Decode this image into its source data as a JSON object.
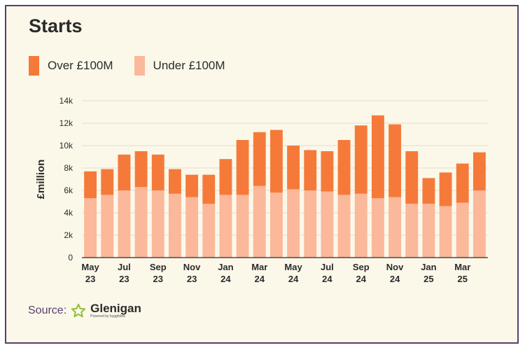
{
  "title": "Starts",
  "source": {
    "label": "Source:",
    "brand": "Glenigan",
    "brand_tagline": "Powered by byggfakta",
    "logo_icon": "star-outline-icon"
  },
  "colors": {
    "over": "#f57a3a",
    "under": "#fbb89a",
    "background": "#fbf8ea",
    "border": "#5a3f6e"
  },
  "chart_data": {
    "type": "bar",
    "stacked": true,
    "ylabel": "£million",
    "xlabel": "",
    "ylim": [
      0,
      14000
    ],
    "yticks": [
      0,
      2000,
      4000,
      6000,
      8000,
      10000,
      12000,
      14000
    ],
    "ytick_labels": [
      "0",
      "2k",
      "4k",
      "6k",
      "8k",
      "10k",
      "12k",
      "14k"
    ],
    "grid": true,
    "legend_position": "top-left",
    "categories": [
      "May 23",
      "Jun 23",
      "Jul 23",
      "Aug 23",
      "Sep 23",
      "Oct 23",
      "Nov 23",
      "Dec 23",
      "Jan 24",
      "Feb 24",
      "Mar 24",
      "Apr 24",
      "May 24",
      "Jun 24",
      "Jul 24",
      "Aug 24",
      "Sep 24",
      "Oct 24",
      "Nov 24",
      "Dec 24",
      "Jan 25",
      "Feb 25",
      "Mar 25",
      "Apr 25"
    ],
    "xtick_labels": [
      {
        "index": 0,
        "month": "May",
        "year": "23"
      },
      {
        "index": 2,
        "month": "Jul",
        "year": "23"
      },
      {
        "index": 4,
        "month": "Sep",
        "year": "23"
      },
      {
        "index": 6,
        "month": "Nov",
        "year": "23"
      },
      {
        "index": 8,
        "month": "Jan",
        "year": "24"
      },
      {
        "index": 10,
        "month": "Mar",
        "year": "24"
      },
      {
        "index": 12,
        "month": "May",
        "year": "24"
      },
      {
        "index": 14,
        "month": "Jul",
        "year": "24"
      },
      {
        "index": 16,
        "month": "Sep",
        "year": "24"
      },
      {
        "index": 18,
        "month": "Nov",
        "year": "24"
      },
      {
        "index": 20,
        "month": "Jan",
        "year": "25"
      },
      {
        "index": 22,
        "month": "Mar",
        "year": "25"
      }
    ],
    "series": [
      {
        "name": "Over £100M",
        "values": [
          2400,
          2300,
          3200,
          3200,
          3200,
          2200,
          2000,
          2600,
          3200,
          4900,
          4800,
          5600,
          3900,
          3600,
          3600,
          4900,
          6100,
          7400,
          6500,
          4700,
          2300,
          3000,
          3500,
          3400
        ]
      },
      {
        "name": "Under £100M",
        "values": [
          5300,
          5600,
          6000,
          6300,
          6000,
          5700,
          5400,
          4800,
          5600,
          5600,
          6400,
          5800,
          6100,
          6000,
          5900,
          5600,
          5700,
          5300,
          5400,
          4800,
          4800,
          4600,
          4900,
          6000
        ]
      }
    ]
  }
}
